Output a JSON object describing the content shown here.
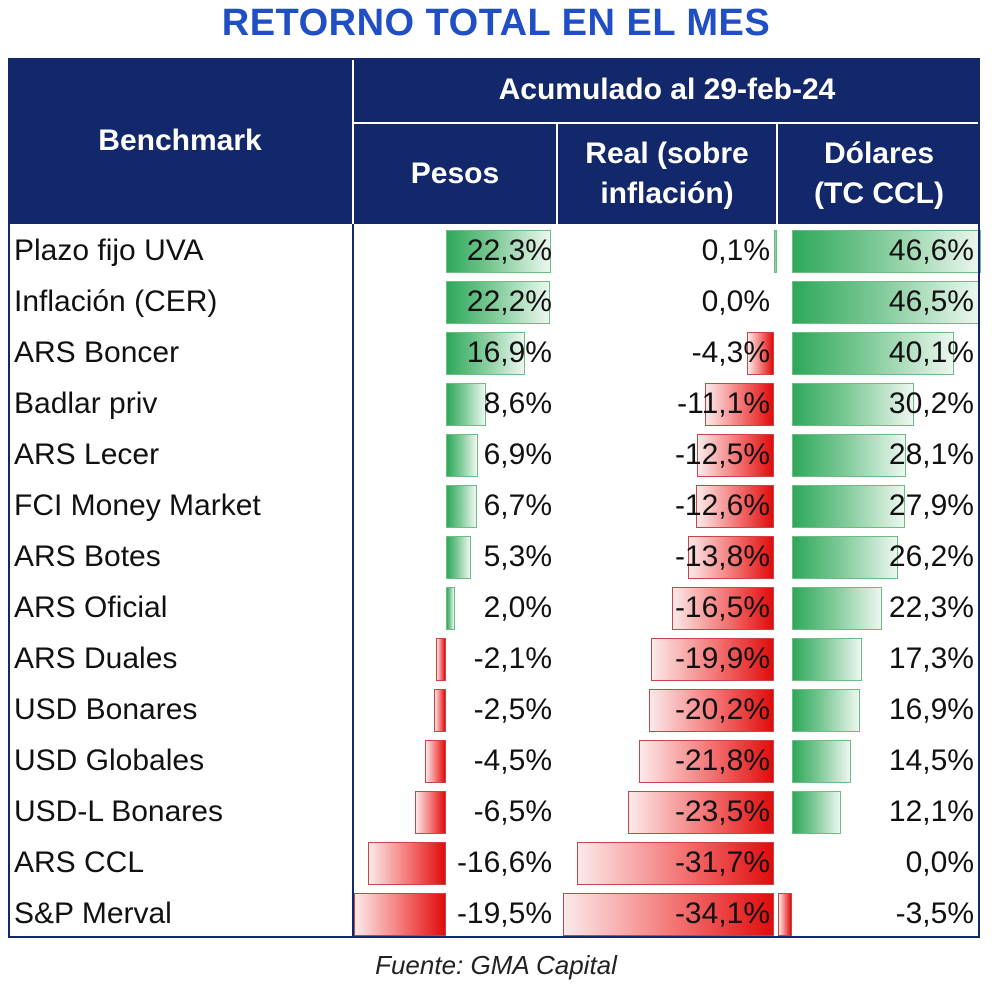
{
  "title": "RETORNO TOTAL EN EL MES",
  "header": {
    "benchmark": "Benchmark",
    "group": "Acumulado al 29-feb-24",
    "col_pesos": "Pesos",
    "col_real": "Real (sobre inflación)",
    "col_dolares": "Dólares (TC CCL)"
  },
  "source": "Fuente: GMA Capital",
  "colors": {
    "header_bg": "#13286b",
    "title": "#1f4ec5",
    "positive": "#2ea85a",
    "negative": "#e00c0c"
  },
  "chart_data": {
    "type": "table",
    "title": "RETORNO TOTAL EN EL MES",
    "columns": [
      "Pesos",
      "Real (sobre inflación)",
      "Dólares (TC CCL)"
    ],
    "rows": [
      {
        "name": "Plazo fijo UVA",
        "pesos": 22.3,
        "real": 0.1,
        "dolares": 46.6,
        "pesos_label": "22,3%",
        "real_label": "0,1%",
        "dolares_label": "46,6%"
      },
      {
        "name": "Inflación (CER)",
        "pesos": 22.2,
        "real": 0.0,
        "dolares": 46.5,
        "pesos_label": "22,2%",
        "real_label": "0,0%",
        "dolares_label": "46,5%"
      },
      {
        "name": "ARS Boncer",
        "pesos": 16.9,
        "real": -4.3,
        "dolares": 40.1,
        "pesos_label": "16,9%",
        "real_label": "-4,3%",
        "dolares_label": "40,1%"
      },
      {
        "name": "Badlar priv",
        "pesos": 8.6,
        "real": -11.1,
        "dolares": 30.2,
        "pesos_label": "8,6%",
        "real_label": "-11,1%",
        "dolares_label": "30,2%"
      },
      {
        "name": "ARS Lecer",
        "pesos": 6.9,
        "real": -12.5,
        "dolares": 28.1,
        "pesos_label": "6,9%",
        "real_label": "-12,5%",
        "dolares_label": "28,1%"
      },
      {
        "name": "FCI Money Market",
        "pesos": 6.7,
        "real": -12.6,
        "dolares": 27.9,
        "pesos_label": "6,7%",
        "real_label": "-12,6%",
        "dolares_label": "27,9%"
      },
      {
        "name": "ARS Botes",
        "pesos": 5.3,
        "real": -13.8,
        "dolares": 26.2,
        "pesos_label": "5,3%",
        "real_label": "-13,8%",
        "dolares_label": "26,2%"
      },
      {
        "name": "ARS Oficial",
        "pesos": 2.0,
        "real": -16.5,
        "dolares": 22.3,
        "pesos_label": "2,0%",
        "real_label": "-16,5%",
        "dolares_label": "22,3%"
      },
      {
        "name": "ARS Duales",
        "pesos": -2.1,
        "real": -19.9,
        "dolares": 17.3,
        "pesos_label": "-2,1%",
        "real_label": "-19,9%",
        "dolares_label": "17,3%"
      },
      {
        "name": "USD Bonares",
        "pesos": -2.5,
        "real": -20.2,
        "dolares": 16.9,
        "pesos_label": "-2,5%",
        "real_label": "-20,2%",
        "dolares_label": "16,9%"
      },
      {
        "name": "USD Globales",
        "pesos": -4.5,
        "real": -21.8,
        "dolares": 14.5,
        "pesos_label": "-4,5%",
        "real_label": "-21,8%",
        "dolares_label": "14,5%"
      },
      {
        "name": "USD-L Bonares",
        "pesos": -6.5,
        "real": -23.5,
        "dolares": 12.1,
        "pesos_label": "-6,5%",
        "real_label": "-23,5%",
        "dolares_label": "12,1%"
      },
      {
        "name": "ARS CCL",
        "pesos": -16.6,
        "real": -31.7,
        "dolares": 0.0,
        "pesos_label": "-16,6%",
        "real_label": "-31,7%",
        "dolares_label": "0,0%"
      },
      {
        "name": "S&P Merval",
        "pesos": -19.5,
        "real": -34.1,
        "dolares": -3.5,
        "pesos_label": "-19,5%",
        "real_label": "-34,1%",
        "dolares_label": "-3,5%"
      }
    ]
  }
}
